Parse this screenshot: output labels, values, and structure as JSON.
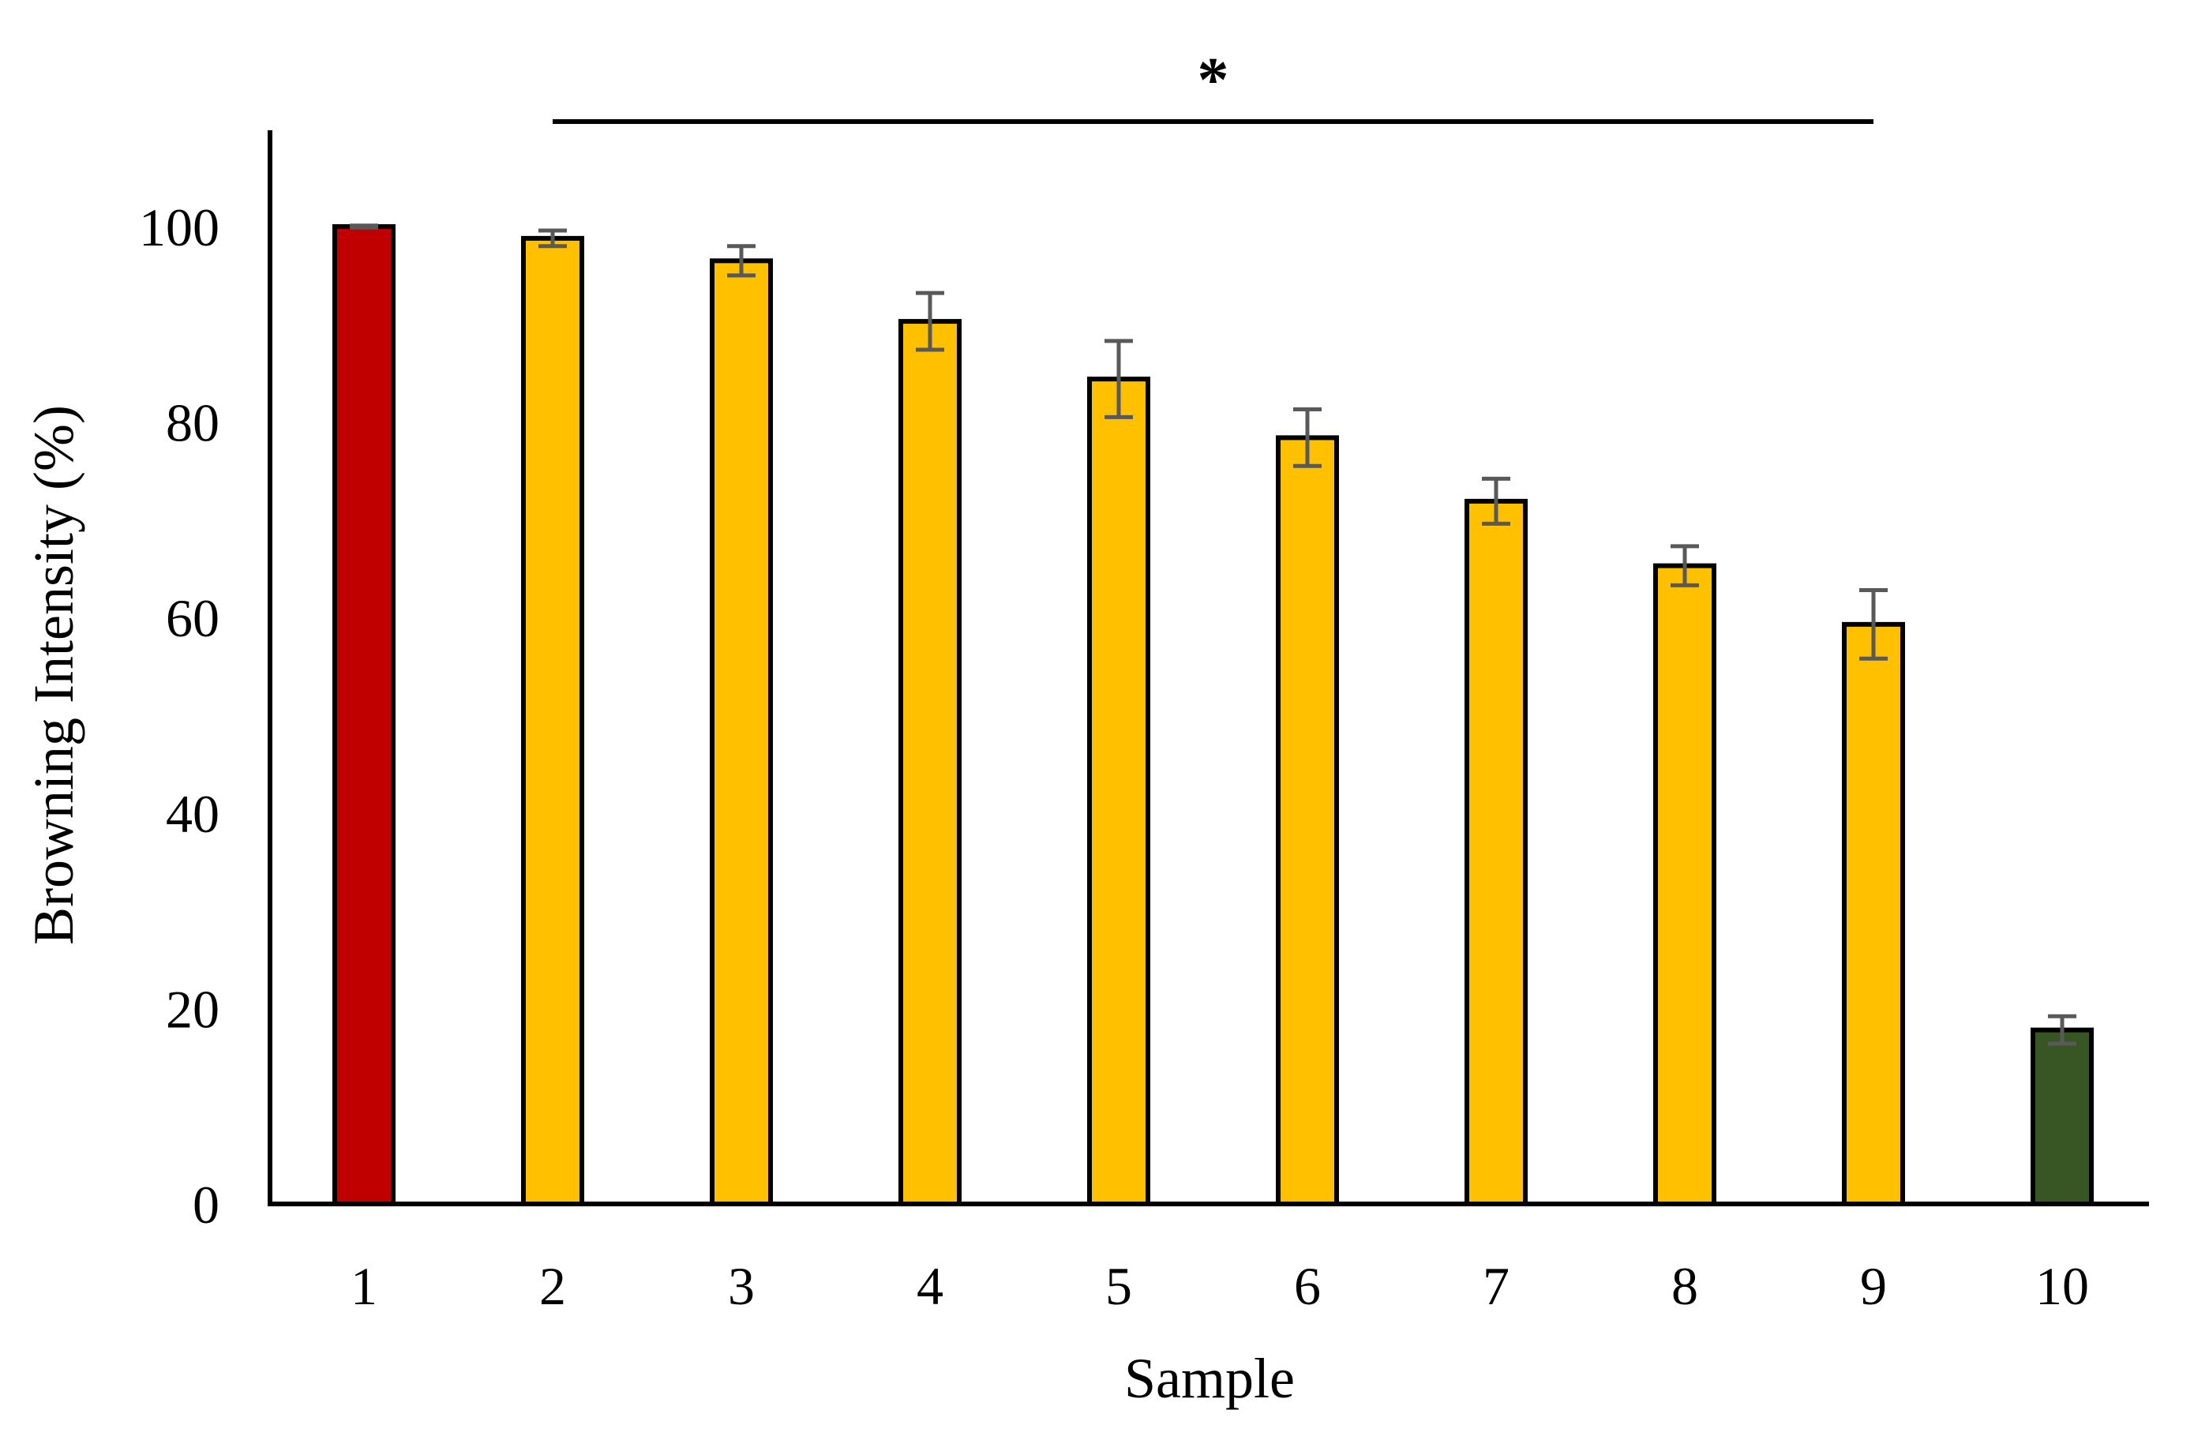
{
  "chart_data": {
    "type": "bar",
    "categories": [
      "1",
      "2",
      "3",
      "4",
      "5",
      "6",
      "7",
      "8",
      "9",
      "10"
    ],
    "values": [
      100,
      98.8,
      96.5,
      90.3,
      84.4,
      78.4,
      71.9,
      65.3,
      59.3,
      17.8
    ],
    "errors": [
      0.1,
      0.8,
      1.5,
      2.9,
      3.9,
      2.9,
      2.3,
      2.0,
      3.5,
      1.4
    ],
    "bar_colors": [
      "#C00000",
      "#FFC000",
      "#FFC000",
      "#FFC000",
      "#FFC000",
      "#FFC000",
      "#FFC000",
      "#FFC000",
      "#FFC000",
      "#375623"
    ],
    "bar_outline_color": "#000000",
    "error_bar_color": "#595959",
    "xlabel": "Sample",
    "ylabel": "Browning Intensity (%)",
    "yticks": [
      "0",
      "20",
      "40",
      "60",
      "80",
      "100"
    ],
    "ylim": [
      0,
      110
    ],
    "grid": false,
    "annotation": {
      "text": "*",
      "from_category": "2",
      "to_category": "9"
    }
  }
}
